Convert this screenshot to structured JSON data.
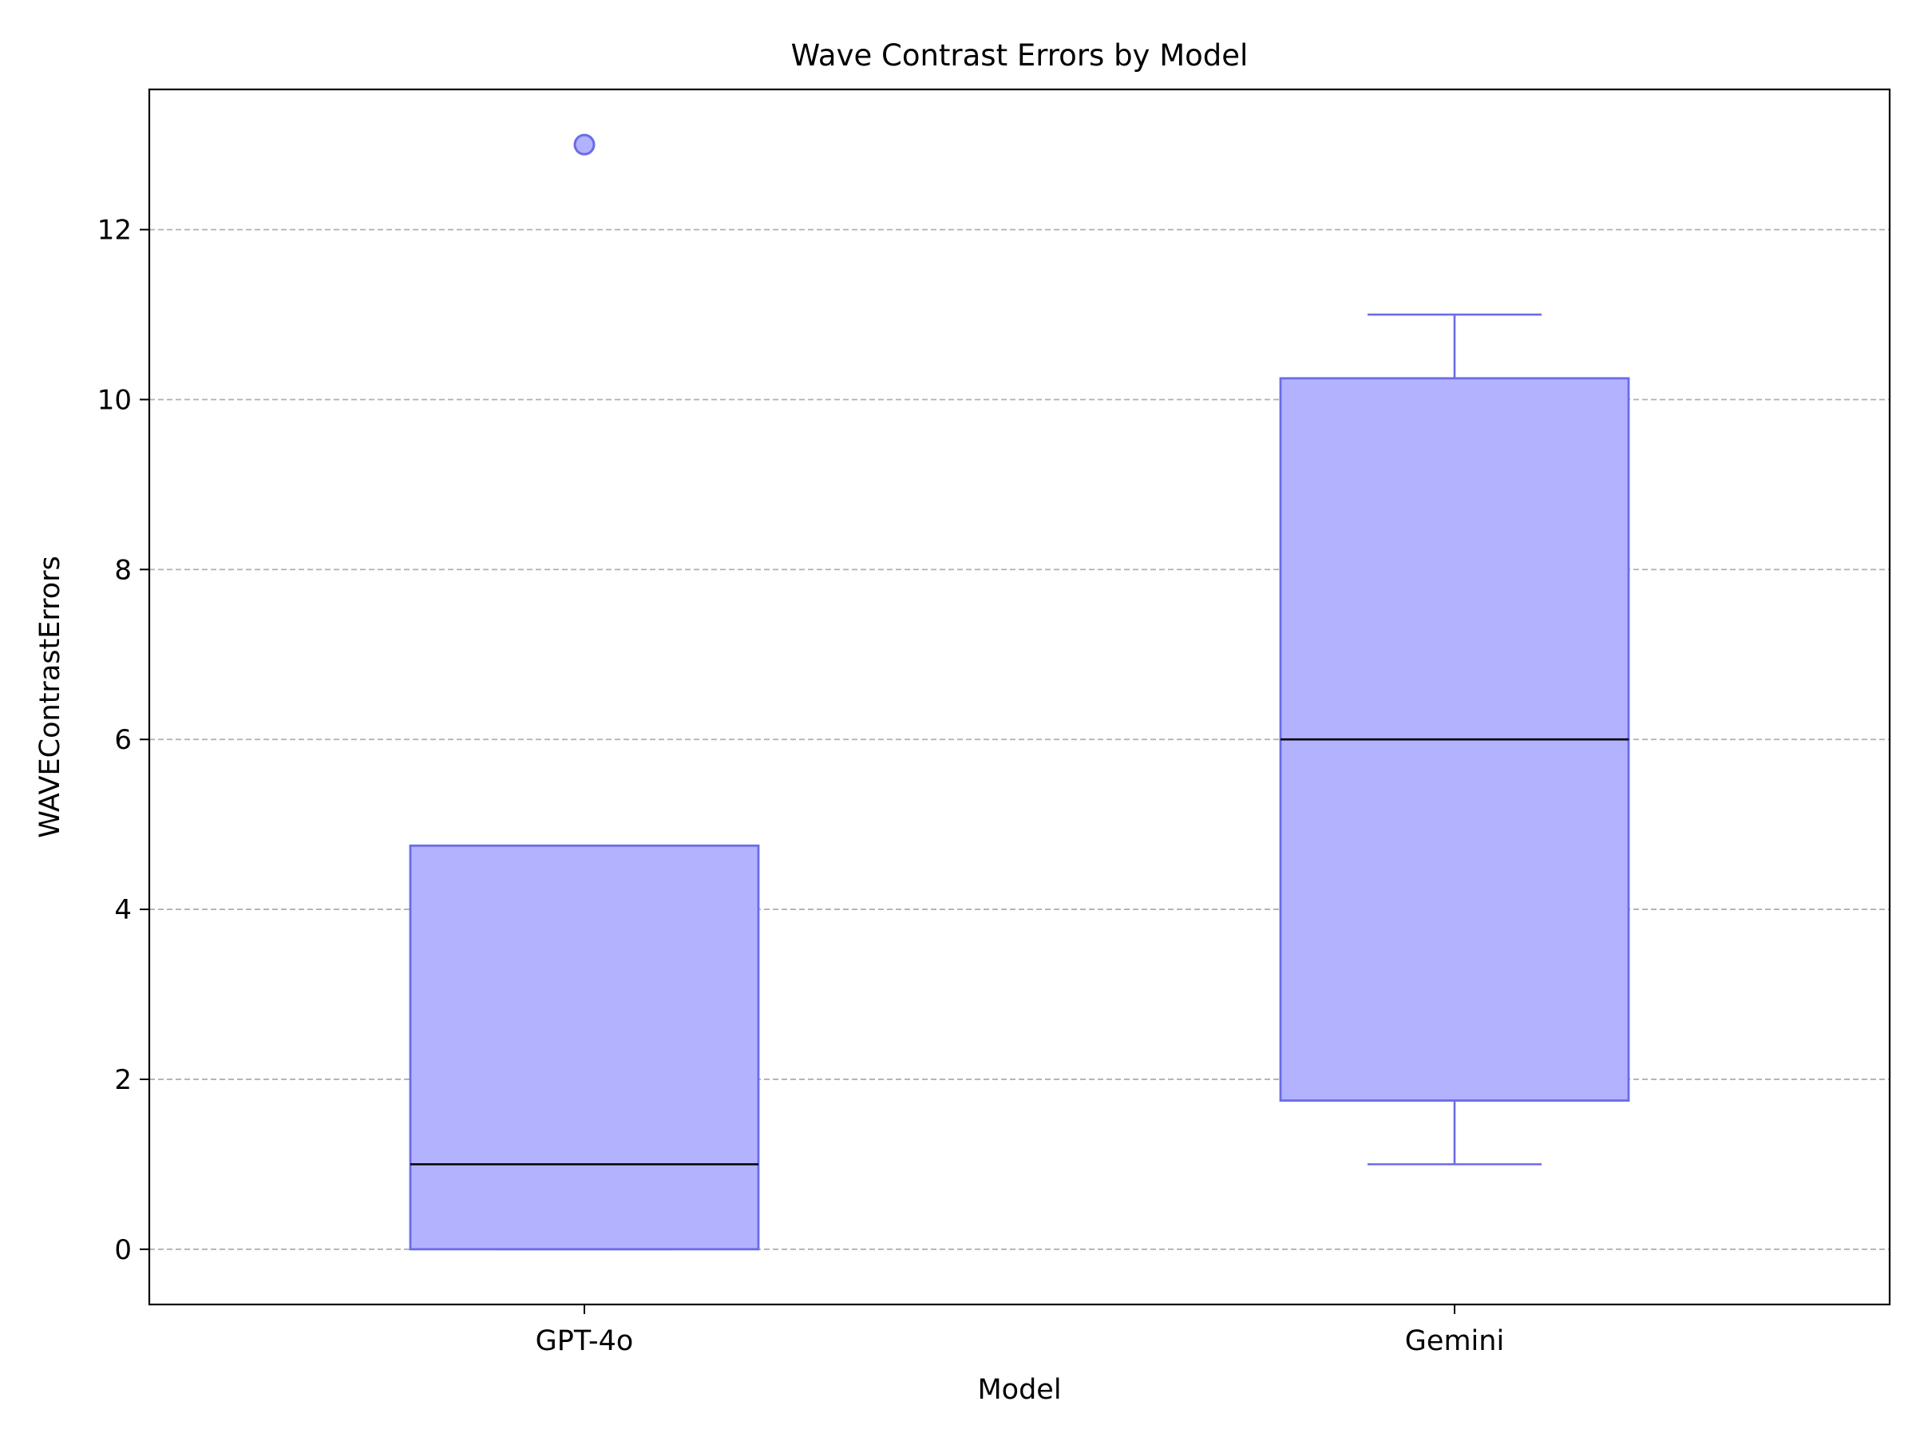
{
  "chart_data": {
    "type": "box",
    "title": "Wave Contrast Errors by Model",
    "xlabel": "Model",
    "ylabel": "WAVEContrastErrors",
    "categories": [
      "GPT-4o",
      "Gemini"
    ],
    "boxes": [
      {
        "category": "GPT-4o",
        "whisker_low": 0,
        "q1": 0,
        "median": 1,
        "q3": 4.75,
        "whisker_high": 4.75,
        "outliers": [
          13
        ]
      },
      {
        "category": "Gemini",
        "whisker_low": 1,
        "q1": 1.75,
        "median": 6,
        "q3": 10.25,
        "whisker_high": 11,
        "outliers": []
      }
    ],
    "ylim": [
      -0.65,
      13.65
    ],
    "yticks": [
      0,
      2,
      4,
      6,
      8,
      10,
      12
    ],
    "grid": {
      "axis": "y",
      "style": "dashed"
    },
    "colors": {
      "box_fill": "#b2b2fe",
      "box_edge": "#6b6be8",
      "median": "#000000",
      "grid": "#b0b0b0"
    }
  }
}
